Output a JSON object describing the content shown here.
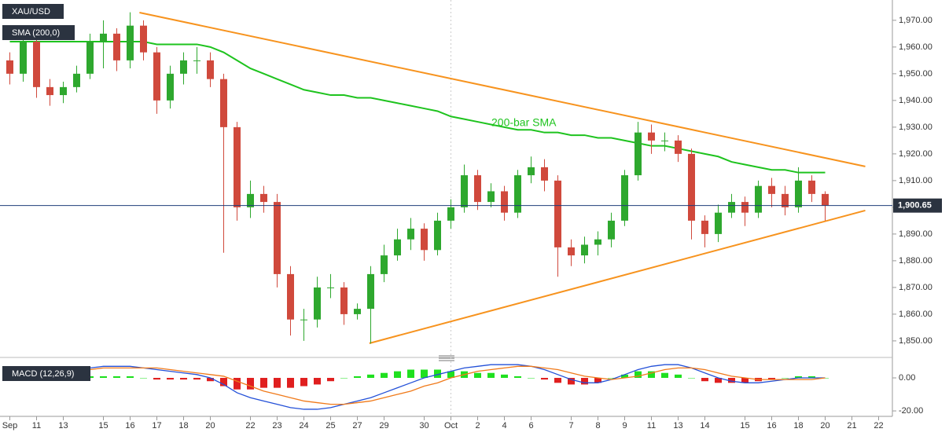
{
  "chart_data": {
    "type": "candlestick",
    "symbol": "XAU/USD",
    "indicator_label": "SMA (200,0)",
    "annotation": "200-bar SMA",
    "macd_label": "MACD (12,26,9)",
    "up_color": "#2ea82e",
    "down_color": "#d0493c",
    "sma_color": "#1ec31e",
    "trend_color": "#f7931e",
    "macd_color": "#2350d8",
    "signal_color": "#f07a1a",
    "hist_up_color": "#1fe01f",
    "hist_down_color": "#e01f1f",
    "price_line_color": "#1f3d7a",
    "open": [
      1955,
      1950,
      1962,
      1945,
      1942,
      1945,
      1950,
      1962,
      1965,
      1955,
      1968,
      1958,
      1940,
      1950,
      1955,
      1955,
      1948,
      1930,
      1900,
      1905,
      1902,
      1875,
      1858,
      1858,
      1870,
      1870,
      1860,
      1862,
      1875,
      1882,
      1888,
      1892,
      1884,
      1895,
      1900,
      1912,
      1902,
      1906,
      1898,
      1912,
      1915,
      1910,
      1885,
      1882,
      1886,
      1888,
      1895,
      1912,
      1928,
      1925,
      1925,
      1920,
      1895,
      1890,
      1898,
      1902,
      1898,
      1908,
      1905,
      1900,
      1910,
      1905
    ],
    "high": [
      1958,
      1965,
      1964,
      1948,
      1947,
      1953,
      1965,
      1970,
      1967,
      1973,
      1970,
      1960,
      1953,
      1958,
      1960,
      1958,
      1950,
      1932,
      1910,
      1908,
      1905,
      1878,
      1862,
      1874,
      1875,
      1872,
      1864,
      1878,
      1886,
      1892,
      1896,
      1894,
      1898,
      1903,
      1916,
      1914,
      1909,
      1908,
      1914,
      1919,
      1918,
      1912,
      1888,
      1889,
      1891,
      1898,
      1914,
      1932,
      1931,
      1928,
      1927,
      1922,
      1897,
      1901,
      1905,
      1904,
      1910,
      1911,
      1908,
      1915,
      1912,
      1906
    ],
    "low": [
      1946,
      1947,
      1941,
      1938,
      1939,
      1943,
      1948,
      1952,
      1951,
      1952,
      1955,
      1935,
      1937,
      1946,
      1950,
      1945,
      1883,
      1895,
      1896,
      1898,
      1870,
      1852,
      1850,
      1855,
      1866,
      1856,
      1858,
      1849,
      1872,
      1880,
      1884,
      1880,
      1882,
      1892,
      1898,
      1899,
      1900,
      1895,
      1896,
      1909,
      1906,
      1874,
      1878,
      1879,
      1882,
      1885,
      1893,
      1910,
      1920,
      1921,
      1917,
      1888,
      1885,
      1887,
      1896,
      1893,
      1896,
      1900,
      1897,
      1898,
      1902,
      1895
    ],
    "close": [
      1950,
      1962,
      1945,
      1942,
      1945,
      1950,
      1962,
      1965,
      1955,
      1968,
      1958,
      1940,
      1950,
      1955,
      1955,
      1948,
      1930,
      1900,
      1905,
      1902,
      1875,
      1858,
      1858,
      1870,
      1870,
      1860,
      1862,
      1875,
      1882,
      1888,
      1892,
      1884,
      1895,
      1900,
      1912,
      1902,
      1906,
      1898,
      1912,
      1915,
      1910,
      1885,
      1882,
      1886,
      1888,
      1895,
      1912,
      1928,
      1925,
      1925,
      1920,
      1895,
      1890,
      1898,
      1902,
      1898,
      1908,
      1905,
      1900,
      1910,
      1905,
      1900.65
    ],
    "sma": [
      1962,
      1962,
      1962,
      1962,
      1962,
      1962,
      1962,
      1962,
      1962,
      1962,
      1962,
      1961,
      1961,
      1961,
      1961,
      1960,
      1958,
      1955,
      1952,
      1950,
      1948,
      1946,
      1944,
      1943,
      1942,
      1942,
      1941,
      1941,
      1940,
      1939,
      1938,
      1937,
      1936,
      1934,
      1933,
      1932,
      1931,
      1930,
      1929,
      1929,
      1928,
      1928,
      1927,
      1927,
      1926,
      1926,
      1925,
      1924,
      1923,
      1923,
      1922,
      1921,
      1920,
      1919,
      1917,
      1916,
      1915,
      1914,
      1914,
      1913,
      1913,
      1913
    ],
    "trendlines": [
      {
        "points": [
          [
            9.7,
            1972.9
          ],
          [
            64,
            1915.3
          ]
        ]
      },
      {
        "points": [
          [
            26.9,
            1849.1
          ],
          [
            64,
            1898.8
          ]
        ]
      }
    ],
    "last_price": {
      "value": 1900.65,
      "label": "1,900.65"
    },
    "ylim": [
      1843.8,
      1977.6
    ],
    "yticks": [
      {
        "value": 1970,
        "label": "1,970.00"
      },
      {
        "value": 1960,
        "label": "1,960.00"
      },
      {
        "value": 1950,
        "label": "1,950.00"
      },
      {
        "value": 1940,
        "label": "1,940.00"
      },
      {
        "value": 1930,
        "label": "1,930.00"
      },
      {
        "value": 1920,
        "label": "1,920.00"
      },
      {
        "value": 1910,
        "label": "1,910.00"
      },
      {
        "value": 1900,
        "label": "1,900.00"
      },
      {
        "value": 1890,
        "label": "1,890.00"
      },
      {
        "value": 1880,
        "label": "1,880.00"
      },
      {
        "value": 1870,
        "label": "1,870.00"
      },
      {
        "value": 1860,
        "label": "1,860.00"
      },
      {
        "value": 1850,
        "label": "1,850.00"
      }
    ],
    "xticks": [
      {
        "value": 0,
        "label": "Sep"
      },
      {
        "value": 2,
        "label": "11"
      },
      {
        "value": 4,
        "label": "13"
      },
      {
        "value": 7,
        "label": "15"
      },
      {
        "value": 9,
        "label": "16"
      },
      {
        "value": 11,
        "label": "17"
      },
      {
        "value": 13,
        "label": "18"
      },
      {
        "value": 15,
        "label": "20"
      },
      {
        "value": 18,
        "label": "22"
      },
      {
        "value": 20,
        "label": "23"
      },
      {
        "value": 22,
        "label": "24"
      },
      {
        "value": 24,
        "label": "25"
      },
      {
        "value": 26,
        "label": "27"
      },
      {
        "value": 28,
        "label": "29"
      },
      {
        "value": 31,
        "label": "30"
      },
      {
        "value": 33,
        "label": "Oct"
      },
      {
        "value": 35,
        "label": "2"
      },
      {
        "value": 37,
        "label": "4"
      },
      {
        "value": 39,
        "label": "6"
      },
      {
        "value": 42,
        "label": "7"
      },
      {
        "value": 44,
        "label": "8"
      },
      {
        "value": 46,
        "label": "9"
      },
      {
        "value": 48,
        "label": "11"
      },
      {
        "value": 50,
        "label": "13"
      },
      {
        "value": 52,
        "label": "14"
      },
      {
        "value": 55,
        "label": "15"
      },
      {
        "value": 57,
        "label": "16"
      },
      {
        "value": 59,
        "label": "18"
      },
      {
        "value": 61,
        "label": "20"
      },
      {
        "value": 63,
        "label": "21"
      },
      {
        "value": 65,
        "label": "22"
      }
    ],
    "macd": [
      3,
      4,
      4,
      5,
      5,
      6,
      6,
      7,
      7,
      7,
      6,
      5,
      4,
      3,
      2,
      0,
      -4,
      -9,
      -12,
      -14,
      -16,
      -18,
      -19,
      -19,
      -18,
      -16,
      -14,
      -12,
      -9,
      -6,
      -3,
      0,
      2,
      4,
      6,
      7,
      8,
      8,
      8,
      7,
      5,
      2,
      -1,
      -3,
      -3,
      -1,
      2,
      5,
      7,
      8,
      8,
      6,
      3,
      0,
      -2,
      -3,
      -3,
      -2,
      -1,
      0,
      0,
      0
    ],
    "signal": [
      2,
      3,
      3,
      4,
      4,
      5,
      5,
      6,
      6,
      6,
      6,
      6,
      5,
      4,
      3,
      2,
      1,
      -2,
      -5,
      -8,
      -10,
      -12,
      -14,
      -15,
      -16,
      -16,
      -15,
      -14,
      -12,
      -10,
      -8,
      -5,
      -3,
      0,
      2,
      4,
      5,
      6,
      7,
      7,
      6,
      5,
      3,
      1,
      0,
      -1,
      0,
      1,
      3,
      5,
      6,
      6,
      5,
      3,
      1,
      0,
      -1,
      -1,
      -1,
      -1,
      -1,
      0
    ],
    "histogram": [
      1,
      1,
      1,
      1,
      1,
      1,
      1,
      1,
      1,
      1,
      0,
      -1,
      -1,
      -1,
      -1,
      -2,
      -5,
      -7,
      -7,
      -6,
      -6,
      -6,
      -5,
      -4,
      -2,
      0,
      1,
      2,
      3,
      4,
      5,
      5,
      5,
      4,
      4,
      3,
      3,
      2,
      1,
      0,
      -1,
      -3,
      -4,
      -4,
      -3,
      0,
      2,
      4,
      4,
      3,
      2,
      0,
      -2,
      -3,
      -3,
      -3,
      -2,
      -1,
      0,
      1,
      1,
      0
    ],
    "y2lim": [
      -23.3,
      10
    ],
    "y2ticks": [
      {
        "value": 0,
        "label": "0.00"
      },
      {
        "value": -20,
        "label": "-20.00"
      }
    ]
  }
}
